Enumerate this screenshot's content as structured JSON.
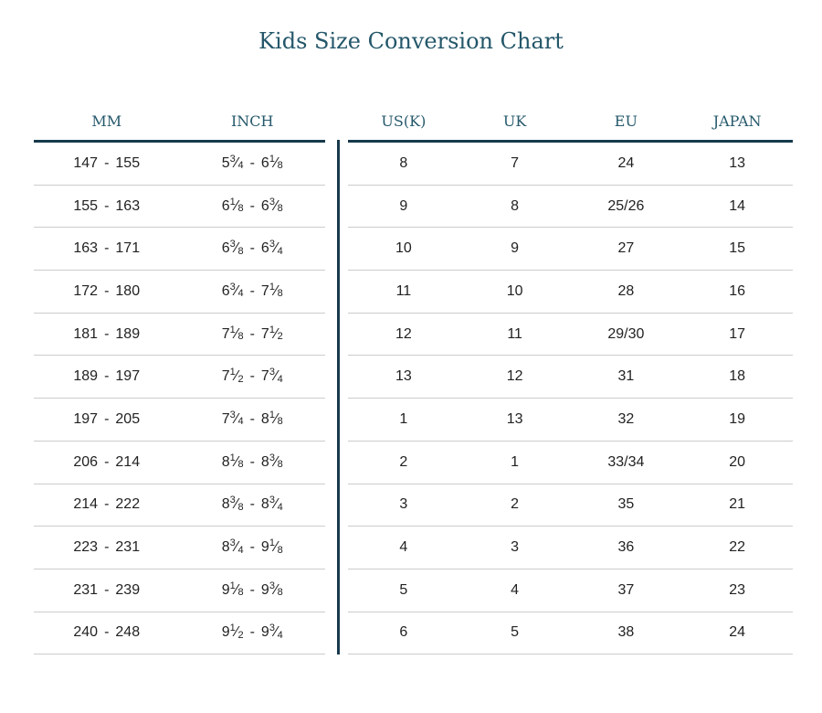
{
  "title": "Kids Size Conversion Chart",
  "colors": {
    "heading_text": "#26596c",
    "rule_dark": "#173a4c",
    "rule_light": "#cccccc",
    "body_text": "#222222"
  },
  "chart_data": {
    "type": "table",
    "title": "Kids Size Conversion Chart",
    "left_headers": [
      "MM",
      "INCH"
    ],
    "right_headers": [
      "US(K)",
      "UK",
      "EU",
      "JAPAN"
    ],
    "rows": [
      {
        "mm": "147 - 155",
        "inch": "5 3/4 - 6 1/8",
        "us_k": "8",
        "uk": "7",
        "eu": "24",
        "japan": "13"
      },
      {
        "mm": "155 - 163",
        "inch": "6 1/8 - 6 3/8",
        "us_k": "9",
        "uk": "8",
        "eu": "25/26",
        "japan": "14"
      },
      {
        "mm": "163 - 171",
        "inch": "6 3/8 - 6 3/4",
        "us_k": "10",
        "uk": "9",
        "eu": "27",
        "japan": "15"
      },
      {
        "mm": "172 - 180",
        "inch": "6 3/4 - 7 1/8",
        "us_k": "11",
        "uk": "10",
        "eu": "28",
        "japan": "16"
      },
      {
        "mm": "181 - 189",
        "inch": "7 1/8 - 7 1/2",
        "us_k": "12",
        "uk": "11",
        "eu": "29/30",
        "japan": "17"
      },
      {
        "mm": "189 - 197",
        "inch": "7 1/2 - 7 3/4",
        "us_k": "13",
        "uk": "12",
        "eu": "31",
        "japan": "18"
      },
      {
        "mm": "197 - 205",
        "inch": "7 3/4 - 8 1/8",
        "us_k": "1",
        "uk": "13",
        "eu": "32",
        "japan": "19"
      },
      {
        "mm": "206 - 214",
        "inch": "8 1/8 - 8 3/8",
        "us_k": "2",
        "uk": "1",
        "eu": "33/34",
        "japan": "20"
      },
      {
        "mm": "214 - 222",
        "inch": "8 3/8 - 8 3/4",
        "us_k": "3",
        "uk": "2",
        "eu": "35",
        "japan": "21"
      },
      {
        "mm": "223 - 231",
        "inch": "8 3/4 - 9 1/8",
        "us_k": "4",
        "uk": "3",
        "eu": "36",
        "japan": "22"
      },
      {
        "mm": "231 - 239",
        "inch": "9 1/8 - 9 3/8",
        "us_k": "5",
        "uk": "4",
        "eu": "37",
        "japan": "23"
      },
      {
        "mm": "240 - 248",
        "inch": "9 1/2 - 9 3/4",
        "us_k": "6",
        "uk": "5",
        "eu": "38",
        "japan": "24"
      }
    ]
  }
}
